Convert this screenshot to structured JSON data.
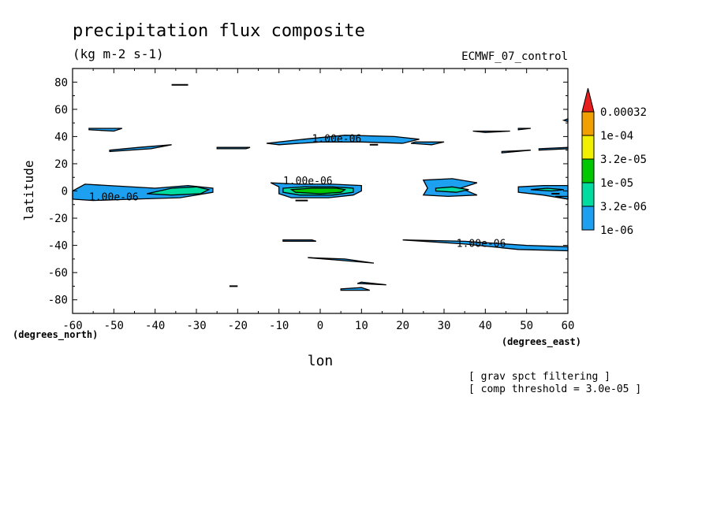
{
  "title": "precipitation flux composite",
  "units": "(kg m-2 s-1)",
  "source_label": "ECMWF_07_control",
  "notes": [
    "[ grav spct filtering ]",
    "[ comp threshold = 3.0e-05 ]"
  ],
  "colors": {
    "c1": "#1ea0f0",
    "c2": "#00dca0",
    "c3": "#00c800",
    "c4": "#f0f000",
    "c5": "#f0a000",
    "c6": "#e61e1e"
  },
  "chart_data": {
    "type": "contour",
    "xlabel": "lon",
    "ylabel": "latitude",
    "x_unit_label": "(degrees_east)",
    "y_unit_label": "(degrees_north)",
    "xlim": [
      -60,
      60
    ],
    "ylim": [
      -90,
      90
    ],
    "x_ticks": [
      -60,
      -50,
      -40,
      -30,
      -20,
      -10,
      0,
      10,
      20,
      30,
      40,
      50,
      60
    ],
    "y_ticks": [
      -80,
      -60,
      -40,
      -20,
      0,
      20,
      40,
      60,
      80
    ],
    "x_tick_labels": [
      "-60",
      "-50",
      "-40",
      "-30",
      "-20",
      "-10",
      "0",
      "10",
      "20",
      "30",
      "40",
      "50",
      "60"
    ],
    "y_tick_labels": [
      "-80",
      "-60",
      "-40",
      "-20",
      "0",
      "20",
      "40",
      "60",
      "80"
    ],
    "colorbar": {
      "labels": [
        "1e-06",
        "3.2e-06",
        "1e-05",
        "3.2e-05",
        "1e-04",
        "0.00032"
      ],
      "colors": [
        "#1ea0f0",
        "#00dca0",
        "#00c800",
        "#f0f000",
        "#f0a000",
        "#e61e1e"
      ]
    },
    "contour_labels": [
      {
        "text": "1.00e-06",
        "lon": -50,
        "lat": -7
      },
      {
        "text": "1.00e-06",
        "lon": -3,
        "lat": 5
      },
      {
        "text": "1.00e-06",
        "lon": 4,
        "lat": 36
      },
      {
        "text": "1.00e-06",
        "lon": 39,
        "lat": -41
      }
    ],
    "regions": [
      {
        "level": 1,
        "points": [
          [
            -57,
            5
          ],
          [
            -40,
            2
          ],
          [
            -32,
            4
          ],
          [
            -26,
            2
          ],
          [
            -26,
            -1
          ],
          [
            -34,
            -5
          ],
          [
            -45,
            -6
          ],
          [
            -55,
            -7
          ],
          [
            -60,
            -6
          ],
          [
            -60,
            0
          ],
          [
            -57,
            5
          ]
        ]
      },
      {
        "level": 2,
        "points": [
          [
            -42,
            -2
          ],
          [
            -36,
            2
          ],
          [
            -30,
            3
          ],
          [
            -27,
            1
          ],
          [
            -29,
            -2
          ],
          [
            -36,
            -3
          ],
          [
            -42,
            -2
          ]
        ]
      },
      {
        "level": 1,
        "points": [
          [
            -51,
            30
          ],
          [
            -44,
            32
          ],
          [
            -36,
            34
          ],
          [
            -41,
            31
          ],
          [
            -51,
            29
          ],
          [
            -51,
            30
          ]
        ]
      },
      {
        "level": 1,
        "points": [
          [
            -56,
            46
          ],
          [
            -48,
            46
          ],
          [
            -50,
            44
          ],
          [
            -56,
            45
          ],
          [
            -56,
            46
          ]
        ]
      },
      {
        "level": 1,
        "points": [
          [
            -25,
            32
          ],
          [
            -17,
            32
          ],
          [
            -18,
            31
          ],
          [
            -25,
            31
          ],
          [
            -25,
            32
          ]
        ]
      },
      {
        "level": 1,
        "points": [
          [
            -13,
            35
          ],
          [
            -4,
            38
          ],
          [
            6,
            41
          ],
          [
            18,
            40
          ],
          [
            24,
            38
          ],
          [
            20,
            35
          ],
          [
            10,
            36
          ],
          [
            0,
            36
          ],
          [
            -10,
            34
          ],
          [
            -13,
            35
          ]
        ]
      },
      {
        "level": 1,
        "points": [
          [
            -12,
            6
          ],
          [
            -5,
            5
          ],
          [
            3,
            5
          ],
          [
            10,
            4
          ],
          [
            10,
            0
          ],
          [
            8,
            -3
          ],
          [
            2,
            -5
          ],
          [
            -7,
            -5
          ],
          [
            -10,
            -2
          ],
          [
            -10,
            3
          ],
          [
            -12,
            6
          ]
        ]
      },
      {
        "level": 2,
        "points": [
          [
            -9,
            2
          ],
          [
            -4,
            3
          ],
          [
            3,
            3
          ],
          [
            8,
            2
          ],
          [
            8,
            -1
          ],
          [
            3,
            -3
          ],
          [
            -5,
            -3
          ],
          [
            -9,
            -1
          ],
          [
            -9,
            2
          ]
        ]
      },
      {
        "level": 3,
        "points": [
          [
            -7,
            1
          ],
          [
            -2,
            2
          ],
          [
            4,
            2
          ],
          [
            6,
            1
          ],
          [
            5,
            -1
          ],
          [
            0,
            -2
          ],
          [
            -6,
            -1
          ],
          [
            -7,
            1
          ]
        ]
      },
      {
        "level": 1,
        "points": [
          [
            25,
            8
          ],
          [
            32,
            9
          ],
          [
            38,
            6
          ],
          [
            34,
            2
          ],
          [
            38,
            -3
          ],
          [
            31,
            -4
          ],
          [
            25,
            -3
          ],
          [
            26,
            2
          ],
          [
            25,
            8
          ]
        ]
      },
      {
        "level": 2,
        "points": [
          [
            28,
            2
          ],
          [
            32,
            3
          ],
          [
            36,
            1
          ],
          [
            33,
            -1
          ],
          [
            28,
            0
          ],
          [
            28,
            2
          ]
        ]
      },
      {
        "level": 1,
        "points": [
          [
            48,
            3
          ],
          [
            54,
            4
          ],
          [
            60,
            4
          ],
          [
            60,
            -6
          ],
          [
            54,
            -3
          ],
          [
            48,
            -1
          ],
          [
            48,
            3
          ]
        ]
      },
      {
        "level": 2,
        "points": [
          [
            51,
            1
          ],
          [
            55,
            2
          ],
          [
            59,
            1
          ],
          [
            56,
            0
          ],
          [
            51,
            1
          ]
        ]
      },
      {
        "level": 1,
        "points": [
          [
            20,
            -36
          ],
          [
            35,
            -37
          ],
          [
            50,
            -40
          ],
          [
            60,
            -41
          ],
          [
            60,
            -44
          ],
          [
            48,
            -43
          ],
          [
            35,
            -39
          ],
          [
            20,
            -36
          ]
        ]
      },
      {
        "level": 1,
        "points": [
          [
            -9,
            -37
          ],
          [
            -1,
            -37
          ],
          [
            -2,
            -36
          ],
          [
            -9,
            -36
          ],
          [
            -9,
            -37
          ]
        ]
      },
      {
        "level": 1,
        "points": [
          [
            -3,
            -49
          ],
          [
            5,
            -51
          ],
          [
            13,
            -53
          ],
          [
            6,
            -50
          ],
          [
            -3,
            -49
          ]
        ]
      },
      {
        "level": 1,
        "points": [
          [
            5,
            -73
          ],
          [
            12,
            -73
          ],
          [
            10,
            -71
          ],
          [
            5,
            -72
          ],
          [
            5,
            -73
          ]
        ]
      },
      {
        "level": 1,
        "points": [
          [
            9,
            -68
          ],
          [
            16,
            -69
          ],
          [
            10,
            -67
          ],
          [
            9,
            -68
          ]
        ]
      },
      {
        "level": 1,
        "points": [
          [
            23,
            36
          ],
          [
            30,
            36
          ],
          [
            27,
            34
          ],
          [
            22,
            35
          ],
          [
            23,
            36
          ]
        ]
      },
      {
        "level": 1,
        "points": [
          [
            44,
            28
          ],
          [
            51,
            30
          ],
          [
            44,
            29
          ],
          [
            44,
            28
          ]
        ]
      },
      {
        "level": 1,
        "points": [
          [
            53,
            31
          ],
          [
            60,
            32
          ],
          [
            60,
            31
          ],
          [
            53,
            30
          ],
          [
            53,
            31
          ]
        ]
      },
      {
        "level": 1,
        "points": [
          [
            37,
            44
          ],
          [
            46,
            44
          ],
          [
            40,
            43
          ],
          [
            37,
            44
          ]
        ]
      },
      {
        "level": 1,
        "points": [
          [
            48,
            46
          ],
          [
            51,
            46
          ],
          [
            48,
            45
          ],
          [
            48,
            46
          ]
        ]
      },
      {
        "level": 1,
        "points": [
          [
            59,
            52
          ],
          [
            60,
            53
          ],
          [
            60,
            51
          ],
          [
            59,
            52
          ]
        ]
      },
      {
        "level": 1,
        "points": [
          [
            57,
            -4
          ],
          [
            60,
            -4
          ],
          [
            60,
            -6
          ],
          [
            57,
            -4
          ]
        ]
      }
    ],
    "lines": [
      {
        "points": [
          [
            -36,
            78
          ],
          [
            -32,
            78
          ]
        ]
      },
      {
        "points": [
          [
            -22,
            -70
          ],
          [
            -20,
            -70
          ]
        ]
      },
      {
        "points": [
          [
            -6,
            -7
          ],
          [
            -3,
            -7
          ]
        ]
      },
      {
        "points": [
          [
            12,
            34
          ],
          [
            14,
            34
          ]
        ]
      },
      {
        "points": [
          [
            56,
            -2
          ],
          [
            58,
            -2
          ]
        ]
      }
    ]
  }
}
